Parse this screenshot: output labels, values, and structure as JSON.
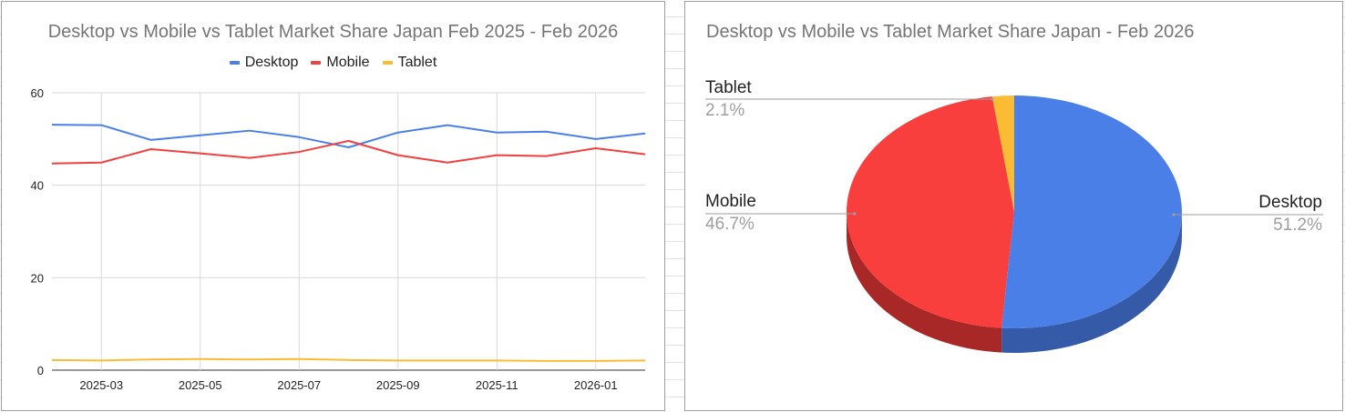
{
  "chart_data": [
    {
      "type": "line",
      "title": "Desktop vs Mobile vs Tablet Market Share Japan Feb 2025 - Feb 2026",
      "xlabel": "",
      "ylabel": "",
      "x": [
        "2025-02",
        "2025-03",
        "2025-04",
        "2025-05",
        "2025-06",
        "2025-07",
        "2025-08",
        "2025-09",
        "2025-10",
        "2025-11",
        "2025-12",
        "2026-01",
        "2026-02"
      ],
      "x_tick_labels": [
        "2025-03",
        "2025-05",
        "2025-07",
        "2025-09",
        "2025-11",
        "2026-01"
      ],
      "y_tick_labels": [
        "0",
        "20",
        "40",
        "60"
      ],
      "ylim": [
        0,
        60
      ],
      "grid": true,
      "legend_position": "top",
      "series": [
        {
          "name": "Desktop",
          "color": "#4a7fe8",
          "values": [
            53.1,
            53.0,
            49.8,
            50.8,
            51.8,
            50.4,
            48.2,
            51.4,
            53.0,
            51.4,
            51.6,
            50.0,
            51.2
          ]
        },
        {
          "name": "Mobile",
          "color": "#f23f3f",
          "values": [
            44.7,
            44.9,
            47.8,
            46.9,
            45.9,
            47.2,
            49.6,
            46.5,
            44.9,
            46.5,
            46.3,
            48.0,
            46.7
          ]
        },
        {
          "name": "Tablet",
          "color": "#fbbc33",
          "values": [
            2.2,
            2.1,
            2.3,
            2.4,
            2.3,
            2.4,
            2.2,
            2.1,
            2.1,
            2.1,
            2.0,
            2.0,
            2.1
          ]
        }
      ]
    },
    {
      "type": "pie",
      "title": "Desktop vs Mobile vs Tablet Market Share Japan - Feb 2026",
      "style": "3d",
      "categories": [
        "Desktop",
        "Mobile",
        "Tablet"
      ],
      "values": [
        51.2,
        46.7,
        2.1
      ],
      "labels": [
        "51.2%",
        "46.7%",
        "2.1%"
      ],
      "colors": [
        "#4a7fe8",
        "#f93e3e",
        "#fbbc33"
      ],
      "legend_position": "labeled"
    }
  ],
  "line_chart": {
    "title": "Desktop vs Mobile vs Tablet Market Share Japan Feb 2025 - Feb 2026",
    "legend": [
      {
        "label": "Desktop",
        "color": "#4a7fe8"
      },
      {
        "label": "Mobile",
        "color": "#f23f3f"
      },
      {
        "label": "Tablet",
        "color": "#fbbc33"
      }
    ]
  },
  "pie_chart": {
    "title": "Desktop vs Mobile vs Tablet Market Share Japan - Feb 2026",
    "slices": [
      {
        "label": "Desktop",
        "pct": "51.2%"
      },
      {
        "label": "Mobile",
        "pct": "46.7%"
      },
      {
        "label": "Tablet",
        "pct": "2.1%"
      }
    ]
  }
}
